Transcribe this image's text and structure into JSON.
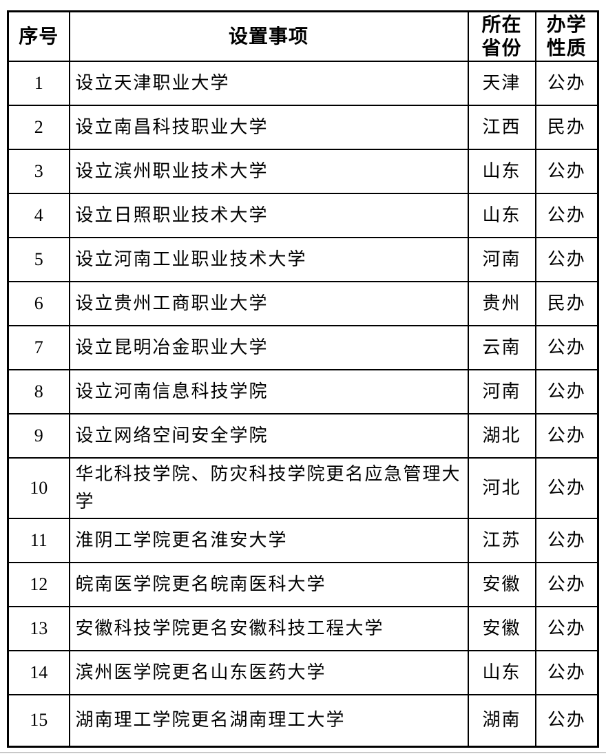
{
  "table": {
    "columns": [
      {
        "label": "序号"
      },
      {
        "label": "设置事项"
      },
      {
        "label": "所在\n省份"
      },
      {
        "label": "办学\n性质"
      }
    ],
    "rows": [
      {
        "no": "1",
        "item": "设立天津职业大学",
        "province": "天津",
        "nature": "公办"
      },
      {
        "no": "2",
        "item": "设立南昌科技职业大学",
        "province": "江西",
        "nature": "民办"
      },
      {
        "no": "3",
        "item": "设立滨州职业技术大学",
        "province": "山东",
        "nature": "公办"
      },
      {
        "no": "4",
        "item": "设立日照职业技术大学",
        "province": "山东",
        "nature": "公办"
      },
      {
        "no": "5",
        "item": "设立河南工业职业技术大学",
        "province": "河南",
        "nature": "公办"
      },
      {
        "no": "6",
        "item": "设立贵州工商职业大学",
        "province": "贵州",
        "nature": "民办"
      },
      {
        "no": "7",
        "item": "设立昆明冶金职业大学",
        "province": "云南",
        "nature": "公办"
      },
      {
        "no": "8",
        "item": "设立河南信息科技学院",
        "province": "河南",
        "nature": "公办"
      },
      {
        "no": "9",
        "item": "设立网络空间安全学院",
        "province": "湖北",
        "nature": "公办"
      },
      {
        "no": "10",
        "item": "华北科技学院、防灾科技学院更名应急管理大学",
        "province": "河北",
        "nature": "公办"
      },
      {
        "no": "11",
        "item": "淮阴工学院更名淮安大学",
        "province": "江苏",
        "nature": "公办"
      },
      {
        "no": "12",
        "item": "皖南医学院更名皖南医科大学",
        "province": "安徽",
        "nature": "公办"
      },
      {
        "no": "13",
        "item": "安徽科技学院更名安徽科技工程大学",
        "province": "安徽",
        "nature": "公办"
      },
      {
        "no": "14",
        "item": "滨州医学院更名山东医药大学",
        "province": "山东",
        "nature": "公办"
      },
      {
        "no": "15",
        "item": "湖南理工学院更名湖南理工大学",
        "province": "湖南",
        "nature": "公办"
      }
    ]
  },
  "colors": {
    "border": "#000000",
    "text": "#000000",
    "background": "#ffffff",
    "footer_rule": "#c9c9c9"
  }
}
